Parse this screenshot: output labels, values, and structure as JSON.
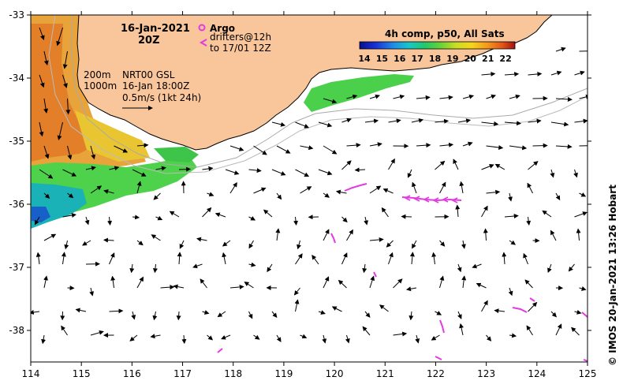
{
  "title": {
    "date": "16-Jan-2021",
    "time": "20Z"
  },
  "legend": {
    "argo_label": "Argo",
    "drifter_label": "drifters@12h",
    "drifter_until": "to 17/01 12Z",
    "isobaths": [
      "200m",
      "1000m"
    ],
    "current_source": "NRT00 GSL",
    "current_time": "16-Jan 18:00Z",
    "current_scale": "0.5m/s (1kt 24h)"
  },
  "colorbar": {
    "title": "4h comp, p50, All Sats",
    "ticks": [
      14,
      15,
      16,
      17,
      18,
      19,
      20,
      21,
      22
    ],
    "range": [
      14,
      22.8
    ]
  },
  "axes": {
    "lon_ticks": [
      114,
      115,
      116,
      117,
      118,
      119,
      120,
      121,
      122,
      123,
      124,
      125
    ],
    "lat_ticks": [
      -33,
      -34,
      -35,
      -36,
      -37,
      -38
    ],
    "lon_range": [
      114,
      125
    ],
    "lat_range": [
      -38.5,
      -33
    ]
  },
  "credit": "©  IMOS 20-Jan-2021 13:26 Hobart",
  "colors": {
    "land": "#f9c69b",
    "coastline": "#000000",
    "arrows": "#000000",
    "drifters": "#e23be2",
    "isobath_200": "#aaaaaa",
    "isobath_1000": "#bbbbbb"
  }
}
